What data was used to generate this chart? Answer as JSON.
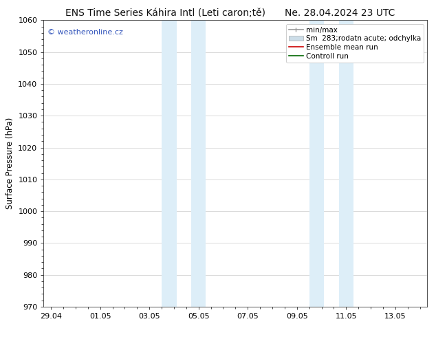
{
  "title_left": "ENS Time Series Káhira Intl (Leti caron;tě)",
  "title_right": "Ne. 28.04.2024 23 UTC",
  "ylabel": "Surface Pressure (hPa)",
  "ylim": [
    970,
    1060
  ],
  "yticks": [
    970,
    980,
    990,
    1000,
    1010,
    1020,
    1030,
    1040,
    1050,
    1060
  ],
  "xtick_labels": [
    "29.04",
    "01.05",
    "03.05",
    "05.05",
    "07.05",
    "09.05",
    "11.05",
    "13.05"
  ],
  "xtick_positions": [
    0,
    2,
    4,
    6,
    8,
    10,
    12,
    14
  ],
  "xlim": [
    -0.3,
    15.3
  ],
  "shaded_regions": [
    {
      "x_start": 4.5,
      "x_end": 5.1
    },
    {
      "x_start": 5.7,
      "x_end": 6.3
    },
    {
      "x_start": 10.5,
      "x_end": 11.1
    },
    {
      "x_start": 11.7,
      "x_end": 12.3
    }
  ],
  "shaded_color": "#ddeef8",
  "bg_color": "#ffffff",
  "plot_bg_color": "#ffffff",
  "grid_color": "#cccccc",
  "watermark_text": "© weatheronline.cz",
  "watermark_color": "#3355bb",
  "legend_label_minmax": "min/max",
  "legend_label_spread": "Sm  283;rodatn acute; odchylka",
  "legend_label_ensemble": "Ensemble mean run",
  "legend_label_control": "Controll run",
  "legend_color_minmax": "#999999",
  "legend_color_spread": "#ccdde8",
  "legend_color_ensemble": "#cc0000",
  "legend_color_control": "#006600",
  "title_fontsize": 10,
  "tick_fontsize": 8,
  "ylabel_fontsize": 8.5,
  "legend_fontsize": 7.5,
  "watermark_fontsize": 8
}
